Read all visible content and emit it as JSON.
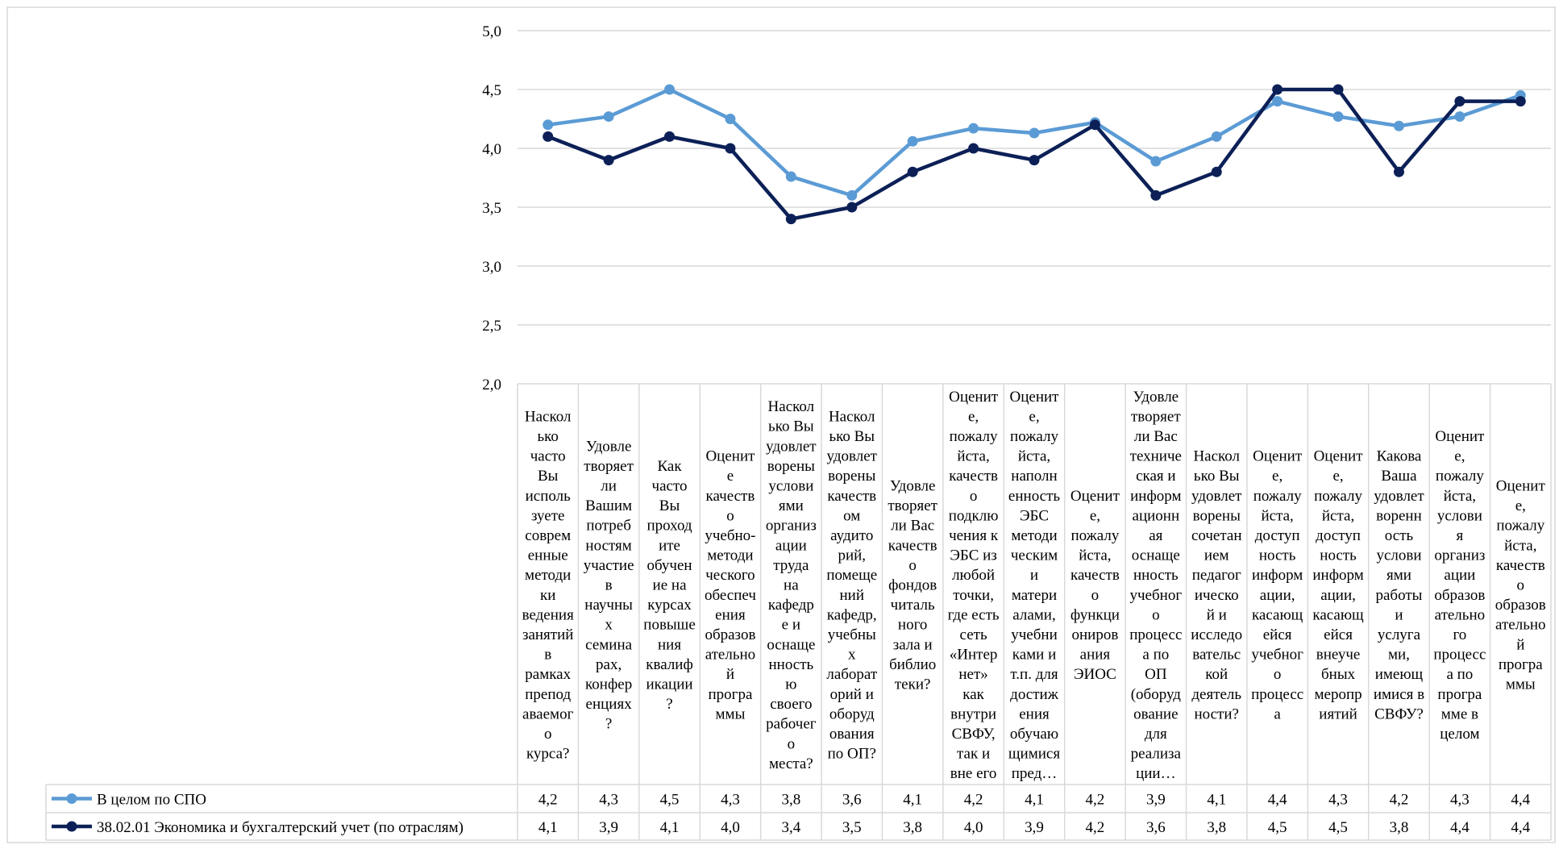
{
  "chart_data": {
    "type": "line",
    "ylim": [
      2.0,
      5.0
    ],
    "y_ticks": [
      "2,0",
      "2,5",
      "3,0",
      "3,5",
      "4,0",
      "4,5",
      "5,0"
    ],
    "grid": true,
    "legend_placement": "data-table",
    "categories": [
      [
        "Наскол",
        "ько",
        "часто",
        "Вы",
        "исполь",
        "зуете",
        "соврем",
        "енные",
        "методи",
        "ки",
        "ведения",
        "занятий",
        "в",
        "рамках",
        "препод",
        "аваемог",
        "о",
        "курса?"
      ],
      [
        "Удовле",
        "творяет",
        "ли",
        "Вашим",
        "потреб",
        "ностям",
        "участие",
        "в",
        "научны",
        "х",
        "семина",
        "рах,",
        "конфер",
        "енциях",
        "?"
      ],
      [
        "Как",
        "часто",
        "Вы",
        "проход",
        "ите",
        "обучен",
        "ие на",
        "курсах",
        "повыше",
        "ния",
        "квалиф",
        "икации",
        "?"
      ],
      [
        "Оценит",
        "е",
        "качеств",
        "о",
        "учебно-",
        "методи",
        "ческого",
        "обеспеч",
        "ения",
        "образов",
        "ательно",
        "й",
        "програ",
        "ммы"
      ],
      [
        "Наскол",
        "ько Вы",
        "удовлет",
        "ворены",
        "услови",
        "ями",
        "организ",
        "ации",
        "труда",
        "на",
        "кафедр",
        "е и",
        "оснаще",
        "нность",
        "ю",
        "своего",
        "рабочег",
        "о",
        "места?"
      ],
      [
        "Наскол",
        "ько Вы",
        "удовлет",
        "ворены",
        "качеств",
        "ом",
        "аудито",
        "рий,",
        "помеще",
        "ний",
        "кафедр,",
        "учебны",
        "х",
        "лаборат",
        "орий и",
        "оборуд",
        "ования",
        "по ОП?"
      ],
      [
        "Удовле",
        "творяет",
        "ли Вас",
        "качеств",
        "о",
        "фондов",
        "читаль",
        "ного",
        "зала и",
        "библио",
        "теки?"
      ],
      [
        "Оценит",
        "е,",
        "пожалу",
        "йста,",
        "качеств",
        "о",
        "подклю",
        "чения к",
        "ЭБС из",
        "любой",
        "точки,",
        "где есть",
        "сеть",
        "«Интер",
        "нет»",
        "как",
        "внутри",
        "СВФУ,",
        "так и",
        "вне его"
      ],
      [
        "Оценит",
        "е,",
        "пожалу",
        "йста,",
        "наполн",
        "енность",
        "ЭБС",
        "методи",
        "ческим",
        "и",
        "матери",
        "алами,",
        "учебни",
        "ками и",
        "т.п. для",
        "достиж",
        "ения",
        "обучаю",
        "щимися",
        "пред…"
      ],
      [
        "Оценит",
        "е,",
        "пожалу",
        "йста,",
        "качеств",
        "о",
        "функци",
        "ониров",
        "ания",
        "ЭИОС"
      ],
      [
        "Удовле",
        "творяет",
        "ли Вас",
        "техниче",
        "ская и",
        "информ",
        "ационн",
        "ая",
        "оснаще",
        "нность",
        "учебног",
        "о",
        "процесс",
        "а по",
        "ОП",
        "(оборуд",
        "ование",
        "для",
        "реализа",
        "ции…"
      ],
      [
        "Наскол",
        "ько Вы",
        "удовлет",
        "ворены",
        "сочетан",
        "ием",
        "педагог",
        "ическо",
        "й и",
        "исследо",
        "вательс",
        "кой",
        "деятель",
        "ности?"
      ],
      [
        "Оценит",
        "е,",
        "пожалу",
        "йста,",
        "доступ",
        "ность",
        "информ",
        "ации,",
        "касающ",
        "ейся",
        "учебног",
        "о",
        "процесс",
        "а"
      ],
      [
        "Оценит",
        "е,",
        "пожалу",
        "йста,",
        "доступ",
        "ность",
        "информ",
        "ации,",
        "касающ",
        "ейся",
        "внеуче",
        "бных",
        "меропр",
        "иятий"
      ],
      [
        "Какова",
        "Ваша",
        "удовлет",
        "воренн",
        "ость",
        "услови",
        "ями",
        "работы",
        "и",
        "услуга",
        "ми,",
        "имеющ",
        "имися в",
        "СВФУ?"
      ],
      [
        "Оценит",
        "е,",
        "пожалу",
        "йста,",
        "услови",
        "я",
        "организ",
        "ации",
        "образов",
        "ательно",
        "го",
        "процесс",
        "а по",
        "програ",
        "мме в",
        "целом"
      ],
      [
        "Оценит",
        "е,",
        "пожалу",
        "йста,",
        "качеств",
        "о",
        "образов",
        "ательно",
        "й",
        "програ",
        "ммы"
      ]
    ],
    "series": [
      {
        "name": "В целом по СПО",
        "color": "#5b9bd5",
        "values": [
          4.2,
          4.27,
          4.5,
          4.25,
          3.76,
          3.6,
          4.06,
          4.17,
          4.13,
          4.22,
          3.89,
          4.1,
          4.4,
          4.27,
          4.19,
          4.27,
          4.45
        ],
        "labels": [
          "4,2",
          "4,3",
          "4,5",
          "4,3",
          "3,8",
          "3,6",
          "4,1",
          "4,2",
          "4,1",
          "4,2",
          "3,9",
          "4,1",
          "4,4",
          "4,3",
          "4,2",
          "4,3",
          "4,4"
        ]
      },
      {
        "name": "38.02.01 Экономика и бухгалтерский учет (по отраслям)",
        "color": "#0c2057",
        "values": [
          4.1,
          3.9,
          4.1,
          4.0,
          3.4,
          3.5,
          3.8,
          4.0,
          3.9,
          4.2,
          3.6,
          3.8,
          4.5,
          4.5,
          3.8,
          4.4,
          4.4
        ],
        "labels": [
          "4,1",
          "3,9",
          "4,1",
          "4,0",
          "3,4",
          "3,5",
          "3,8",
          "4,0",
          "3,9",
          "4,2",
          "3,6",
          "3,8",
          "4,5",
          "4,5",
          "3,8",
          "4,4",
          "4,4"
        ]
      }
    ]
  }
}
